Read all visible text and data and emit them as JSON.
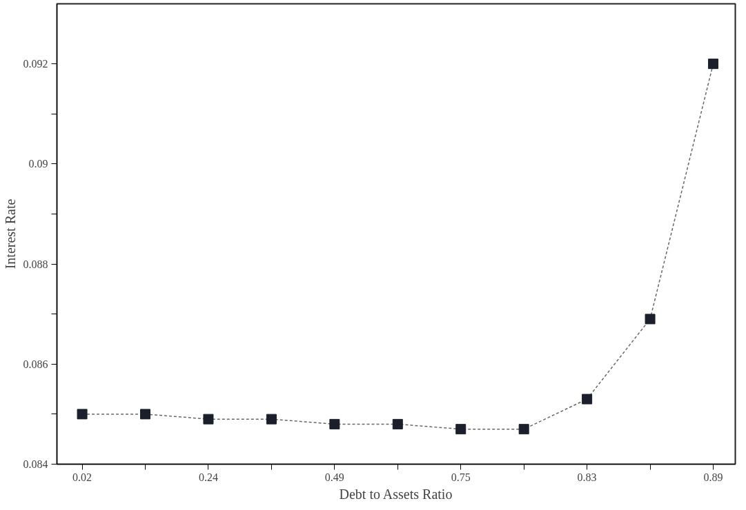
{
  "chart_data": {
    "type": "line",
    "xlabel": "Debt to Assets Ratio",
    "ylabel": "Interest Rate",
    "categories": [
      "0.02",
      null,
      "0.24",
      null,
      "0.49",
      null,
      "0.75",
      null,
      "0.83",
      null,
      "0.89"
    ],
    "series": [
      {
        "color": "#1a1f2b",
        "values": [
          0.085,
          0.085,
          0.0849,
          0.0849,
          0.0848,
          0.0848,
          0.0847,
          0.0847,
          0.0853,
          0.0869,
          0.092
        ]
      }
    ],
    "ylim": [
      0.084,
      0.0932
    ],
    "yticks": [
      0.084,
      {
        "value": 0.085,
        "label": null
      },
      0.086,
      {
        "value": 0.087,
        "label": null
      },
      0.088,
      {
        "value": 0.089,
        "label": null
      },
      0.09,
      {
        "value": 0.091,
        "label": null
      },
      0.092
    ],
    "marker": "square",
    "line_style": "dashed",
    "grid": false
  }
}
